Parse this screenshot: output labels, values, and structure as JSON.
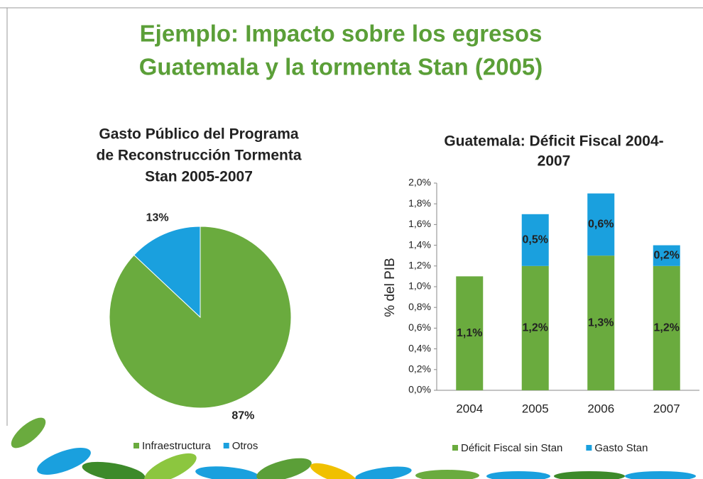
{
  "title": [
    "Ejemplo: Impacto sobre los egresos",
    "Guatemala y la tormenta Stan (2005)"
  ],
  "chart_data": [
    {
      "type": "pie",
      "title": [
        "Gasto Público del Programa",
        "de Reconstrucción Tormenta",
        "Stan 2005-2007"
      ],
      "categories": [
        "Infraestructura",
        "Otros"
      ],
      "values": [
        87,
        13
      ],
      "value_labels": [
        "87%",
        "13%"
      ],
      "colors": [
        "#6aab3e",
        "#1aa0de"
      ],
      "legend": "bottom"
    },
    {
      "type": "stacked-bar",
      "title": [
        "Guatemala:  Déficit Fiscal 2004-",
        "2007"
      ],
      "y_label": "% del PIB",
      "categories": [
        "2004",
        "2005",
        "2006",
        "2007"
      ],
      "series": [
        {
          "name": "Déficit Fiscal sin Stan",
          "color": "#6aab3e",
          "values": [
            1.1,
            1.2,
            1.3,
            1.2
          ],
          "value_labels": [
            "1,1%",
            "1,2%",
            "1,3%",
            "1,2%"
          ]
        },
        {
          "name": "Gasto Stan",
          "color": "#1aa0de",
          "values": [
            null,
            0.5,
            0.6,
            0.2
          ],
          "value_labels": [
            null,
            "0,5%",
            "0,6%",
            "0,2%"
          ]
        }
      ],
      "ylim": [
        0,
        2.0
      ],
      "yticks": [
        {
          "value": 0,
          "label": "0,0%"
        },
        {
          "value": 0.2,
          "label": "0,2%"
        },
        {
          "value": 0.4,
          "label": "0,4%"
        },
        {
          "value": 0.6,
          "label": "0,6%"
        },
        {
          "value": 0.8,
          "label": "0,8%"
        },
        {
          "value": 1.0,
          "label": "1,0%"
        },
        {
          "value": 1.2,
          "label": "1,2%"
        },
        {
          "value": 1.4,
          "label": "1,4%"
        },
        {
          "value": 1.6,
          "label": "1,6%"
        },
        {
          "value": 1.8,
          "label": "1,8%"
        },
        {
          "value": 2.0,
          "label": "2,0%"
        }
      ],
      "grid": false,
      "legend": "bottom"
    }
  ]
}
